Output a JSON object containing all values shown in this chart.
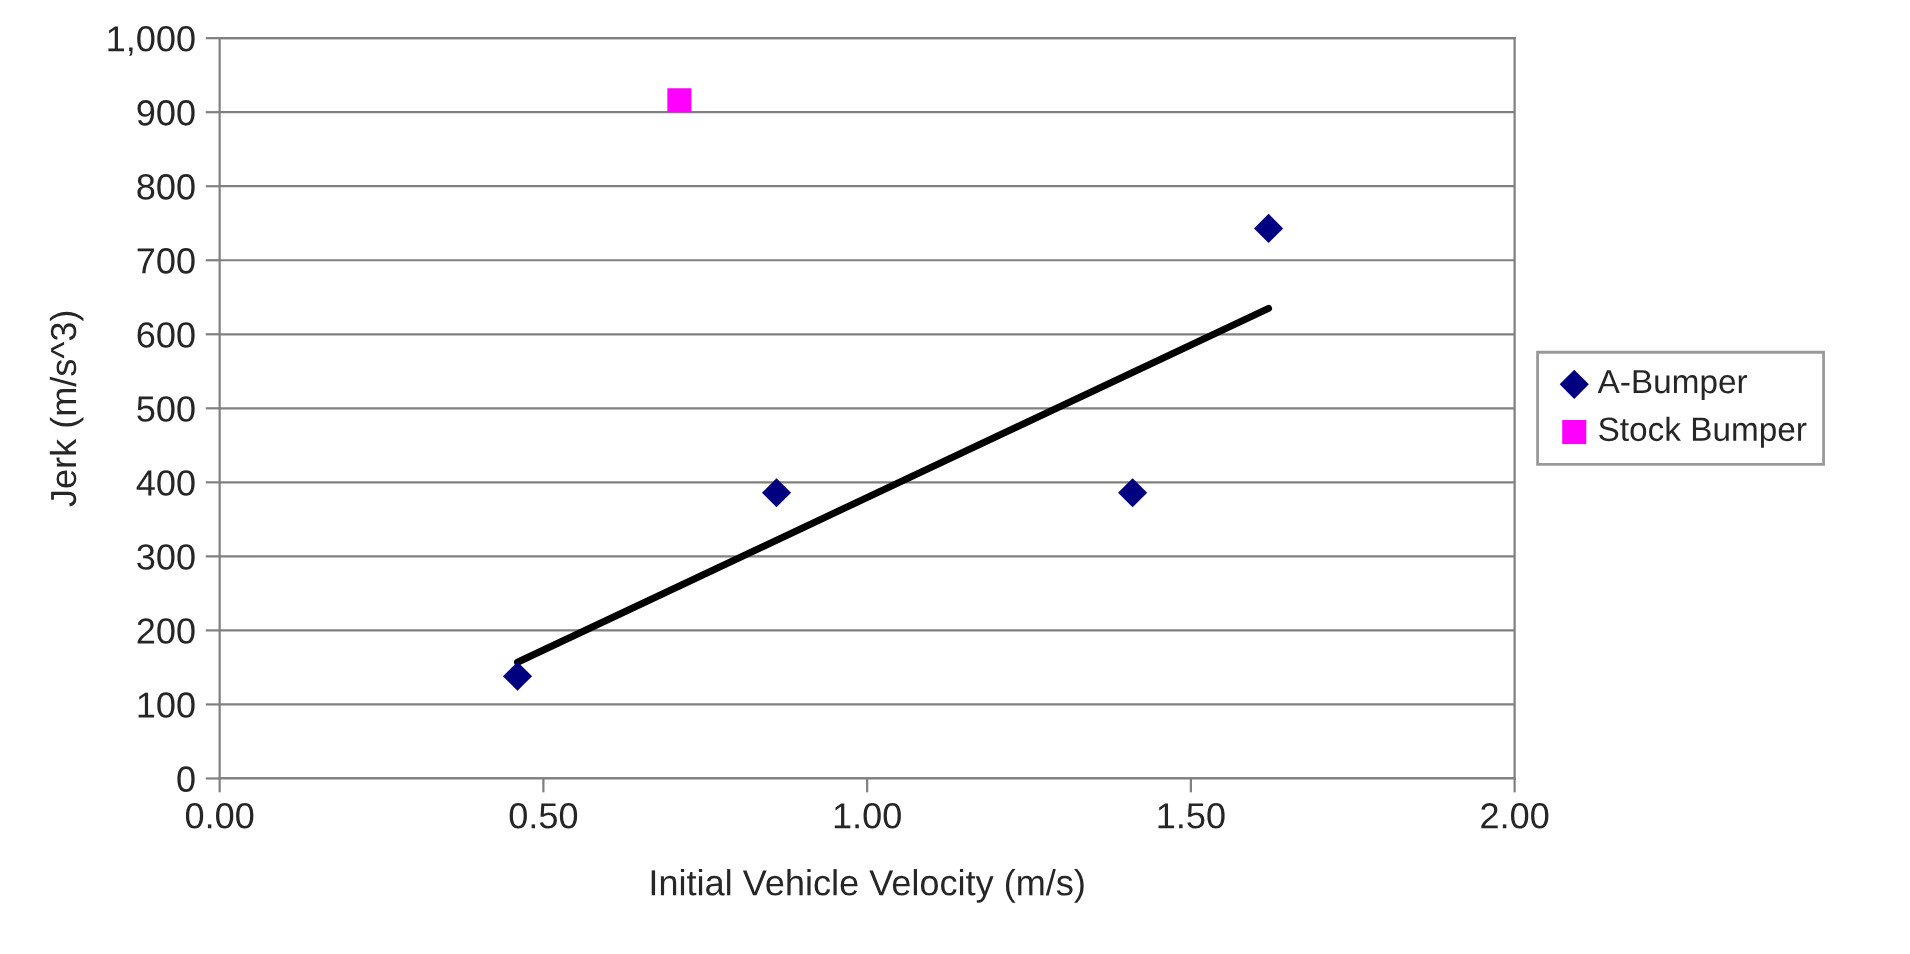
{
  "chart_data": {
    "type": "scatter",
    "xlabel": "Initial Vehicle Velocity (m/s)",
    "ylabel": "Jerk (m/s^3)",
    "xlim": [
      0,
      2
    ],
    "xticks": [
      {
        "value": 0,
        "label": "0.00"
      },
      {
        "value": 0.5,
        "label": "0.50"
      },
      {
        "value": 1,
        "label": "1.00"
      },
      {
        "value": 1.5,
        "label": "1.50"
      },
      {
        "value": 2,
        "label": "2.00"
      }
    ],
    "ylim": [
      0,
      1000
    ],
    "yticks": [
      0,
      100,
      200,
      300,
      400,
      500,
      600,
      700,
      800,
      900,
      {
        "value": 1000,
        "label": "1,000"
      }
    ],
    "grid": "y",
    "legend": "right",
    "series": [
      {
        "name": "A-Bumper",
        "marker": "diamond",
        "color": "#000080",
        "x": [
          0.46,
          0.86,
          1.41,
          1.62
        ],
        "values": [
          138,
          386,
          386,
          743
        ]
      },
      {
        "name": "Stock Bumper",
        "marker": "square",
        "color": "#ff00ff",
        "x": [
          0.71
        ],
        "values": [
          916
        ]
      },
      {
        "type": "line",
        "color": "#000000",
        "line_style": "solid",
        "marker": "none",
        "x": [
          0.46,
          1.62
        ],
        "values": [
          157,
          635
        ]
      }
    ]
  }
}
